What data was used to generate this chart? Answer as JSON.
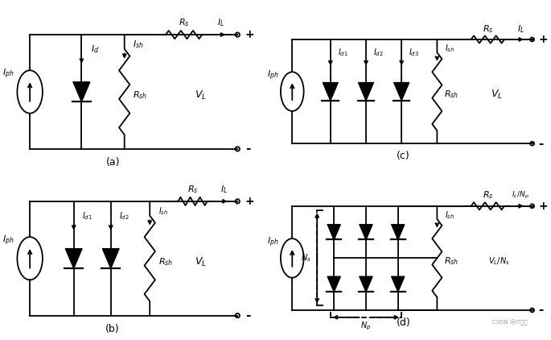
{
  "bg_color": "#ffffff",
  "line_color": "#000000",
  "lw": 1.3,
  "font_size": 8,
  "font_size_small": 7,
  "panels": [
    "(a)",
    "(b)",
    "(c)",
    "(d)"
  ]
}
